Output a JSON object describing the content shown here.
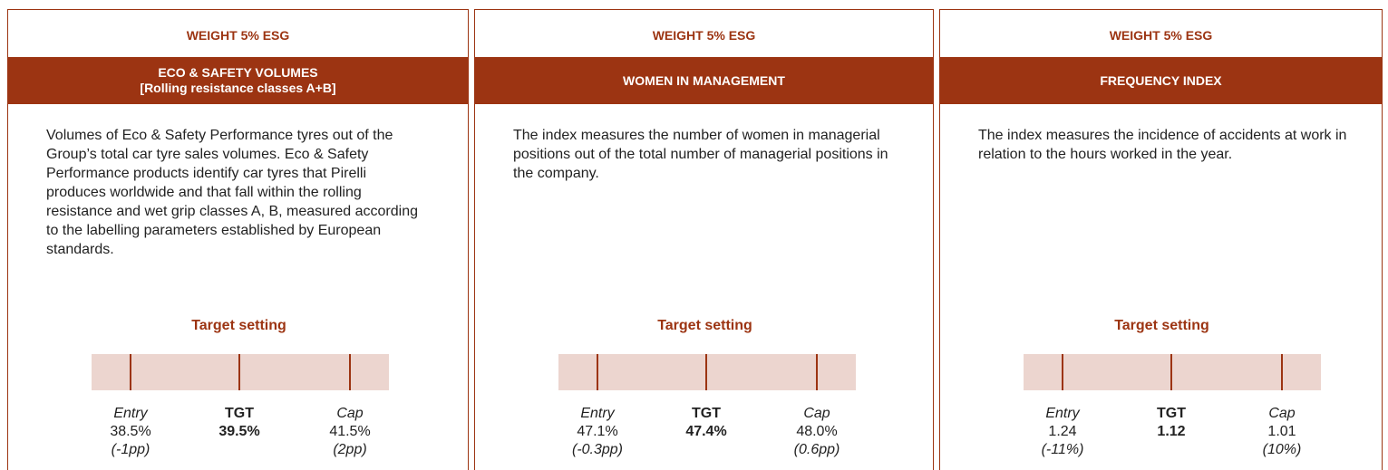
{
  "panels": [
    {
      "weight": "WEIGHT 5% ESG",
      "title_lines": [
        "ECO & SAFETY VOLUMES",
        "[Rolling resistance classes A+B]"
      ],
      "description": "Volumes of Eco & Safety Performance tyres out of the Group’s total car tyre sales volumes. Eco & Safety Performance products identify car tyres that Pirelli produces worldwide and that fall within the rolling resistance and wet grip classes A, B, measured according to the labelling parameters established by European standards.",
      "target_label": "Target setting",
      "entry": {
        "label": "Entry",
        "value": "38.5%",
        "delta": "(-1pp)"
      },
      "tgt": {
        "label": "TGT",
        "value": "39.5%"
      },
      "cap": {
        "label": "Cap",
        "value": "41.5%",
        "delta": "(2pp)"
      }
    },
    {
      "weight": "WEIGHT 5% ESG",
      "title_lines": [
        "WOMEN IN MANAGEMENT"
      ],
      "description": "The index measures the number of women in managerial positions out of the total number of managerial positions in the company.",
      "target_label": "Target setting",
      "entry": {
        "label": "Entry",
        "value": "47.1%",
        "delta": "(-0.3pp)"
      },
      "tgt": {
        "label": "TGT",
        "value": "47.4%"
      },
      "cap": {
        "label": "Cap",
        "value": "48.0%",
        "delta": "(0.6pp)"
      }
    },
    {
      "weight": "WEIGHT 5% ESG",
      "title_lines": [
        "FREQUENCY INDEX"
      ],
      "description": "The index measures the incidence of accidents at work in relation to the hours worked in the year.",
      "target_label": "Target setting",
      "entry": {
        "label": "Entry",
        "value": "1.24",
        "delta": "(-11%)"
      },
      "tgt": {
        "label": "TGT",
        "value": "1.12"
      },
      "cap": {
        "label": "Cap",
        "value": "1.01",
        "delta": "(10%)"
      }
    }
  ]
}
